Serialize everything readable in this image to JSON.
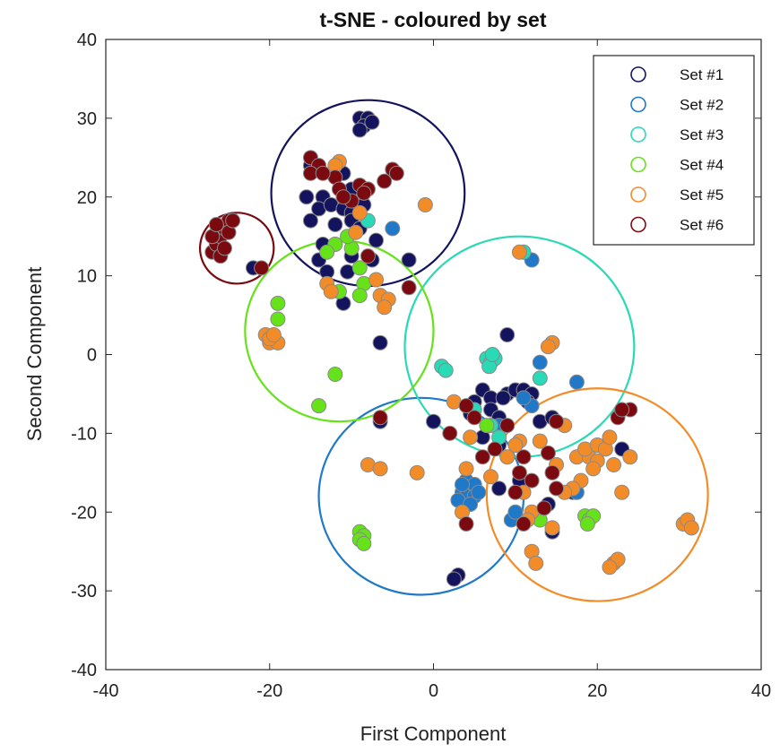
{
  "chart_data": {
    "type": "scatter",
    "title": "t-SNE - coloured by set",
    "xlabel": "First Component",
    "ylabel": "Second Component",
    "xlim": [
      -40,
      40
    ],
    "ylim": [
      -40,
      40
    ],
    "x_ticks": [
      -40,
      -20,
      0,
      20,
      40
    ],
    "y_ticks": [
      -40,
      -30,
      -20,
      -10,
      0,
      10,
      20,
      30,
      40
    ],
    "grid": false,
    "legend_position": "top-right",
    "series": [
      {
        "name": "Set #1",
        "color": "#14145e",
        "circle": {
          "cx": -8,
          "cy": 20.5,
          "r": 11.8
        },
        "points": [
          [
            -9,
            30
          ],
          [
            -8,
            30
          ],
          [
            -8.5,
            29
          ],
          [
            -9,
            28.5
          ],
          [
            -7.5,
            29.5
          ],
          [
            -15,
            24
          ],
          [
            -11,
            23
          ],
          [
            -10,
            21
          ],
          [
            -8,
            21
          ],
          [
            -15.5,
            20
          ],
          [
            -13.5,
            20
          ],
          [
            -14,
            18.5
          ],
          [
            -12.5,
            19
          ],
          [
            -11,
            18.5
          ],
          [
            -10,
            18
          ],
          [
            -8.5,
            19
          ],
          [
            -12,
            16.5
          ],
          [
            -10,
            17
          ],
          [
            -9,
            16
          ],
          [
            -13.5,
            14
          ],
          [
            -12,
            14
          ],
          [
            -10,
            12.5
          ],
          [
            -14,
            12
          ],
          [
            -13,
            10.5
          ],
          [
            -10.5,
            10.5
          ],
          [
            -7.5,
            12
          ],
          [
            -3,
            12
          ],
          [
            -11,
            6.5
          ],
          [
            -6.5,
            1.5
          ],
          [
            -22,
            11
          ],
          [
            -15,
            17
          ],
          [
            -7,
            14.5
          ],
          [
            6,
            -4.5
          ],
          [
            7,
            -5.5
          ],
          [
            9,
            -5
          ],
          [
            10,
            -4.5
          ],
          [
            11,
            -4.5
          ],
          [
            12,
            -5
          ],
          [
            11.5,
            -6
          ],
          [
            8.5,
            -5.5
          ],
          [
            5,
            -6
          ],
          [
            4.5,
            -7.5
          ],
          [
            7,
            -7
          ],
          [
            8,
            -8
          ],
          [
            13,
            -8.5
          ],
          [
            14.5,
            -8
          ],
          [
            0,
            -8.5
          ],
          [
            -6.5,
            -8.5
          ],
          [
            6,
            -10.5
          ],
          [
            8,
            -11.5
          ],
          [
            9,
            2.5
          ],
          [
            14,
            -19
          ],
          [
            3,
            -28
          ],
          [
            2.5,
            -28.5
          ],
          [
            14.5,
            -22.5
          ],
          [
            23,
            -12
          ],
          [
            17,
            -17.5
          ],
          [
            10.5,
            -16
          ],
          [
            8,
            -17
          ]
        ]
      },
      {
        "name": "Set #2",
        "color": "#1f78c8",
        "circle": {
          "cx": -1.5,
          "cy": -18,
          "r": 12.5
        },
        "points": [
          [
            -5,
            16
          ],
          [
            12,
            12
          ],
          [
            13,
            -1
          ],
          [
            4,
            -16
          ],
          [
            4.5,
            -17
          ],
          [
            5,
            -16.5
          ],
          [
            3.5,
            -17.5
          ],
          [
            4,
            -18
          ],
          [
            3,
            -18.5
          ],
          [
            5,
            -18
          ],
          [
            4.5,
            -19
          ],
          [
            3.5,
            -16.5
          ],
          [
            5.5,
            -17.5
          ],
          [
            9.5,
            -21
          ],
          [
            12.5,
            -20.5
          ],
          [
            17.5,
            -3.5
          ],
          [
            12,
            -6.5
          ],
          [
            11,
            -5.5
          ],
          [
            17.5,
            -17.5
          ],
          [
            8,
            -9
          ],
          [
            10,
            -20
          ]
        ]
      },
      {
        "name": "Set #3",
        "color": "#2ad9b5",
        "circle": {
          "cx": 10.5,
          "cy": 1,
          "r": 14
        },
        "points": [
          [
            -8,
            17
          ],
          [
            11,
            13
          ],
          [
            6.5,
            -0.5
          ],
          [
            7,
            -1
          ],
          [
            7.5,
            -0.5
          ],
          [
            6.8,
            -1.5
          ],
          [
            7.2,
            0
          ],
          [
            1,
            -1.5
          ],
          [
            1.5,
            -2
          ],
          [
            13,
            -3
          ],
          [
            5,
            -7
          ],
          [
            7,
            -9
          ],
          [
            8,
            -10.5
          ]
        ]
      },
      {
        "name": "Set #4",
        "color": "#66e21a",
        "circle": {
          "cx": -11.5,
          "cy": 3,
          "r": 11.5
        },
        "points": [
          [
            -12,
            14
          ],
          [
            -13,
            13
          ],
          [
            -10,
            13.5
          ],
          [
            -9,
            11
          ],
          [
            -8.5,
            9
          ],
          [
            -11.5,
            8
          ],
          [
            -9,
            7.5
          ],
          [
            -19,
            6.5
          ],
          [
            -19,
            4.5
          ],
          [
            -12,
            -2.5
          ],
          [
            -14,
            -6.5
          ],
          [
            -9,
            -22.5
          ],
          [
            -8.5,
            -23
          ],
          [
            -9,
            -23.5
          ],
          [
            -8.5,
            -24
          ],
          [
            18.5,
            -20.5
          ],
          [
            19,
            -21
          ],
          [
            19.5,
            -20.5
          ],
          [
            18.8,
            -21.5
          ],
          [
            13,
            -21
          ],
          [
            6.5,
            -9
          ],
          [
            -10.5,
            15
          ]
        ]
      },
      {
        "name": "Set #5",
        "color": "#f28c28",
        "circle": {
          "cx": 20,
          "cy": -17.8,
          "r": 13.5
        },
        "points": [
          [
            -11.5,
            24.5
          ],
          [
            -12,
            24
          ],
          [
            -9,
            18
          ],
          [
            -9.5,
            15.5
          ],
          [
            -1,
            19
          ],
          [
            -7,
            9.5
          ],
          [
            -6.5,
            7.5
          ],
          [
            -5.5,
            7
          ],
          [
            -6,
            6
          ],
          [
            -13,
            9
          ],
          [
            -12.5,
            8
          ],
          [
            -20.5,
            2.5
          ],
          [
            -20,
            1.5
          ],
          [
            -19.5,
            2
          ],
          [
            -19,
            1.5
          ],
          [
            -20,
            2
          ],
          [
            -19.5,
            2.5
          ],
          [
            10.5,
            13
          ],
          [
            14.5,
            1.5
          ],
          [
            14,
            1
          ],
          [
            2.5,
            -6
          ],
          [
            4.5,
            -10.5
          ],
          [
            10.5,
            -11
          ],
          [
            15,
            -14
          ],
          [
            13,
            -11
          ],
          [
            16,
            -9
          ],
          [
            17.5,
            -13
          ],
          [
            19,
            -13
          ],
          [
            18.5,
            -12
          ],
          [
            20,
            -11.5
          ],
          [
            21,
            -12
          ],
          [
            20,
            -13.5
          ],
          [
            22,
            -14
          ],
          [
            21.5,
            -10.5
          ],
          [
            19.5,
            -14.5
          ],
          [
            24,
            -13
          ],
          [
            18,
            -16
          ],
          [
            17,
            -17
          ],
          [
            16,
            -17.5
          ],
          [
            12,
            -20
          ],
          [
            11.5,
            -21
          ],
          [
            12,
            -25
          ],
          [
            12.5,
            -26.5
          ],
          [
            22,
            -26.5
          ],
          [
            22.5,
            -26
          ],
          [
            21.5,
            -27
          ],
          [
            30.5,
            -21.5
          ],
          [
            31,
            -21
          ],
          [
            31.5,
            -22
          ],
          [
            -8,
            -14
          ],
          [
            -6.5,
            -14.5
          ],
          [
            -2,
            -15
          ],
          [
            4,
            -14.5
          ],
          [
            3.5,
            -20
          ],
          [
            9,
            -13
          ],
          [
            11,
            -17.5
          ],
          [
            14.5,
            -22
          ],
          [
            10,
            -11.5
          ],
          [
            7,
            -15.5
          ],
          [
            23,
            -17.5
          ]
        ]
      },
      {
        "name": "Set #6",
        "color": "#7a0a10",
        "circle": {
          "cx": -24,
          "cy": 13.5,
          "r": 4.5
        },
        "points": [
          [
            -27,
            13
          ],
          [
            -26.5,
            14
          ],
          [
            -26,
            15
          ],
          [
            -25.5,
            16
          ],
          [
            -25,
            17
          ],
          [
            -26,
            12.5
          ],
          [
            -25.5,
            13.5
          ],
          [
            -27,
            15
          ],
          [
            -26.5,
            16.5
          ],
          [
            -25,
            15.5
          ],
          [
            -24.5,
            17
          ],
          [
            -15,
            25
          ],
          [
            -14,
            24
          ],
          [
            -12,
            22.5
          ],
          [
            -15,
            23
          ],
          [
            -13.5,
            23
          ],
          [
            -11.5,
            21
          ],
          [
            -9,
            21.5
          ],
          [
            -8,
            21
          ],
          [
            -6,
            22
          ],
          [
            -5,
            23.5
          ],
          [
            -4.5,
            23
          ],
          [
            -8.5,
            20.5
          ],
          [
            -10,
            19.5
          ],
          [
            -11,
            20
          ],
          [
            -8,
            12.5
          ],
          [
            -3,
            8.5
          ],
          [
            -6.5,
            -8
          ],
          [
            2,
            -10
          ],
          [
            4,
            -6.5
          ],
          [
            5,
            -8
          ],
          [
            6,
            -13
          ],
          [
            7.5,
            -12
          ],
          [
            9,
            -9
          ],
          [
            10,
            -17.5
          ],
          [
            11,
            -21.5
          ],
          [
            13.5,
            -19.5
          ],
          [
            14.5,
            -15
          ],
          [
            15,
            -17
          ],
          [
            24,
            -7
          ],
          [
            22.5,
            -8
          ],
          [
            23,
            -7
          ],
          [
            15,
            -8.5
          ],
          [
            12,
            -16
          ],
          [
            4,
            -21.5
          ],
          [
            14,
            -12.5
          ],
          [
            -21,
            11
          ],
          [
            11,
            -13
          ],
          [
            10.5,
            -15
          ]
        ]
      }
    ]
  }
}
